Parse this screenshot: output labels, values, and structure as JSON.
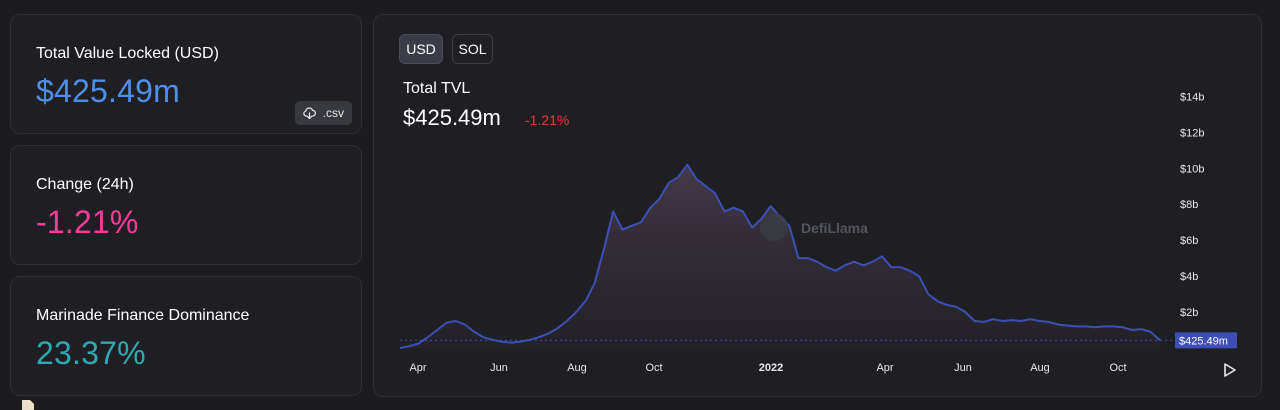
{
  "cards": {
    "tvl": {
      "label": "Total Value Locked (USD)",
      "value": "$425.49m",
      "csv_label": ".csv",
      "csv_icon": "cloud-download-icon"
    },
    "change": {
      "label": "Change (24h)",
      "value": "-1.21%"
    },
    "dominance": {
      "label": "Marinade Finance Dominance",
      "value": "23.37%"
    }
  },
  "chart_panel": {
    "toggles": [
      {
        "label": "USD",
        "active": true
      },
      {
        "label": "SOL",
        "active": false
      }
    ],
    "title": "Total TVL",
    "value": "$425.49m",
    "change": "-1.21%",
    "watermark": "DefiLlama",
    "play_icon": "play-icon"
  },
  "colors": {
    "tvl_value": "#4f8fea",
    "change_value": "#fd3c99",
    "dominance_value": "#2ea8b2",
    "line": "#3b4fb5",
    "change_negative": "#e23a3a"
  },
  "chart_data": {
    "type": "area",
    "title": "Total TVL",
    "xlabel": "",
    "ylabel": "",
    "x_tick_labels": [
      "Apr",
      "Jun",
      "Aug",
      "Oct",
      "2022",
      "Apr",
      "Jun",
      "Aug",
      "Oct"
    ],
    "y_tick_labels": [
      "$2b",
      "$4b",
      "$6b",
      "$8b",
      "$10b",
      "$12b",
      "$14b"
    ],
    "y_ticks": [
      2,
      4,
      6,
      8,
      10,
      12,
      14
    ],
    "ylim": [
      0,
      14.3
    ],
    "current_label": "$425.49m",
    "current_value": 0.42549,
    "grid": false,
    "series": [
      {
        "values": [
          0,
          0.1,
          0.25,
          0.6,
          1.0,
          1.4,
          1.5,
          1.3,
          0.9,
          0.6,
          0.45,
          0.35,
          0.3,
          0.35,
          0.45,
          0.6,
          0.8,
          1.1,
          1.5,
          2.0,
          2.6,
          3.6,
          5.5,
          7.6,
          6.6,
          6.8,
          7.0,
          7.8,
          8.3,
          9.2,
          9.5,
          10.2,
          9.4,
          9.0,
          8.6,
          7.6,
          7.8,
          7.6,
          6.7,
          7.2,
          7.9,
          7.3,
          6.8,
          5.0,
          5.0,
          4.8,
          4.5,
          4.3,
          4.6,
          4.8,
          4.6,
          4.8,
          5.1,
          4.5,
          4.5,
          4.3,
          4.0,
          3.0,
          2.6,
          2.4,
          2.3,
          2.0,
          1.5,
          1.45,
          1.6,
          1.5,
          1.55,
          1.5,
          1.6,
          1.5,
          1.45,
          1.3,
          1.25,
          1.2,
          1.2,
          1.15,
          1.2,
          1.2,
          1.15,
          1.0,
          1.05,
          0.9,
          0.42549
        ]
      }
    ]
  }
}
